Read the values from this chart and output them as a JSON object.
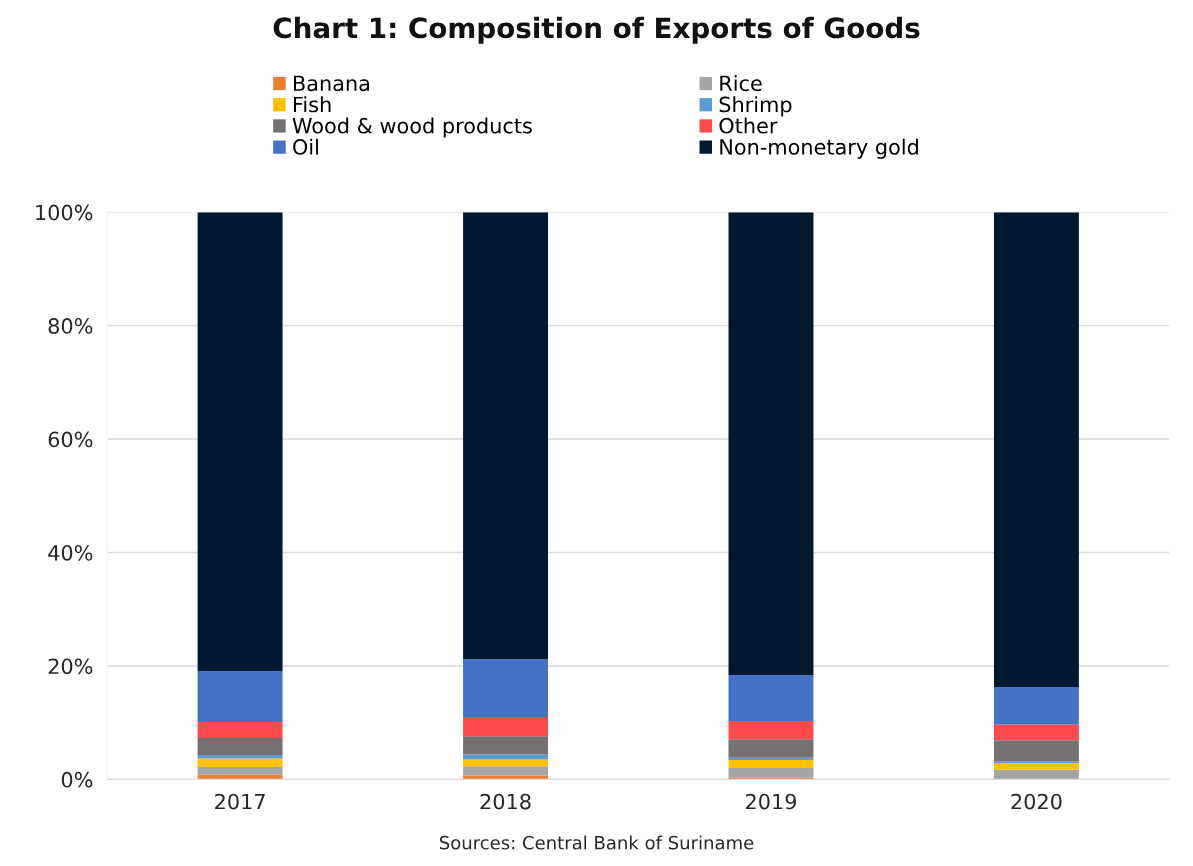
{
  "chart_data": {
    "type": "bar",
    "title": "Chart 1: Composition of Exports of Goods",
    "stacked": true,
    "categories": [
      "2017",
      "2018",
      "2019",
      "2020"
    ],
    "series": [
      {
        "name": "Banana",
        "color": "#ed7d31",
        "values": [
          0.8,
          0.7,
          0.3,
          0
        ]
      },
      {
        "name": "Rice",
        "color": "#a5a5a5",
        "values": [
          1.4,
          1.6,
          1.7,
          1.7
        ]
      },
      {
        "name": "Fish",
        "color": "#ffc000",
        "values": [
          1.5,
          1.2,
          1.4,
          1.2
        ]
      },
      {
        "name": "Shrimp",
        "color": "#5b9bd5",
        "values": [
          0.6,
          0.9,
          0.4,
          0.3
        ]
      },
      {
        "name": "Wood & wood products",
        "color": "#767171",
        "values": [
          3.0,
          3.2,
          3.3,
          3.7
        ]
      },
      {
        "name": "Other",
        "color": "#ff4b4b",
        "values": [
          2.8,
          3.4,
          3.2,
          2.8
        ]
      },
      {
        "name": "Oil",
        "color": "#4472c4",
        "values": [
          9.0,
          10.2,
          8.1,
          6.6
        ]
      },
      {
        "name": "Non-monetary gold",
        "color": "#001933",
        "values": [
          80.9,
          78.8,
          81.6,
          83.7
        ]
      }
    ],
    "ylim": [
      0,
      100
    ],
    "yticks": [
      {
        "value": 0,
        "label": "0%"
      },
      {
        "value": 20,
        "label": "20%"
      },
      {
        "value": 40,
        "label": "40%"
      },
      {
        "value": 60,
        "label": "60%"
      },
      {
        "value": 80,
        "label": "80%"
      },
      {
        "value": 100,
        "label": "100%"
      }
    ],
    "grid": "y",
    "legend": "top",
    "annotations": [
      "Sources: Central Bank of Suriname"
    ]
  }
}
